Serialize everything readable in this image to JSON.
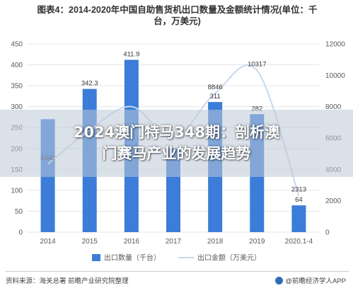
{
  "title_line1": "图表4：2014-2020年中国自助售货机出口数量及金额统计情况(单位：千",
  "title_line2": "台，万美元)",
  "banner_line1": "2024澳门特马348期：剖析澳",
  "banner_line2": "门赛马产业的发展趋势",
  "source": "资料来源：海关总署 前瞻产业研究院整理",
  "brand": "@前瞻经济学人APP",
  "colors": {
    "bar": "#3b7dd8",
    "line": "#c7d9ef",
    "grid": "#e6e6e6",
    "axis_text": "#595959"
  },
  "chart_data": {
    "type": "bar",
    "categories": [
      "2014",
      "2015",
      "2016",
      "2017",
      "2018",
      "2019",
      "2020.1-4"
    ],
    "series": [
      {
        "name": "出口数量（千台）",
        "type": "bar",
        "axis": "left",
        "values": [
          270,
          342.3,
          411.9,
          200,
          311,
          282,
          64
        ],
        "labels": [
          "",
          "342.3",
          "411.9",
          "",
          "311",
          "282",
          "64"
        ]
      },
      {
        "name": "出口金额（万美元）",
        "type": "line",
        "axis": "right",
        "values": [
          4342,
          6500,
          8000,
          6000,
          8846,
          10317,
          2313
        ],
        "labels": [
          "4342",
          "",
          "",
          "",
          "8846",
          "10317",
          "2313"
        ]
      }
    ],
    "y_left": {
      "min": 0,
      "max": 450,
      "ticks": [
        0,
        50,
        100,
        150,
        200,
        250,
        300,
        350,
        400,
        450
      ]
    },
    "y_right": {
      "min": 0,
      "max": 12000,
      "ticks": [
        0,
        2000,
        4000,
        6000,
        8000,
        10000,
        12000
      ]
    },
    "legend": "bottom",
    "grid": true
  }
}
